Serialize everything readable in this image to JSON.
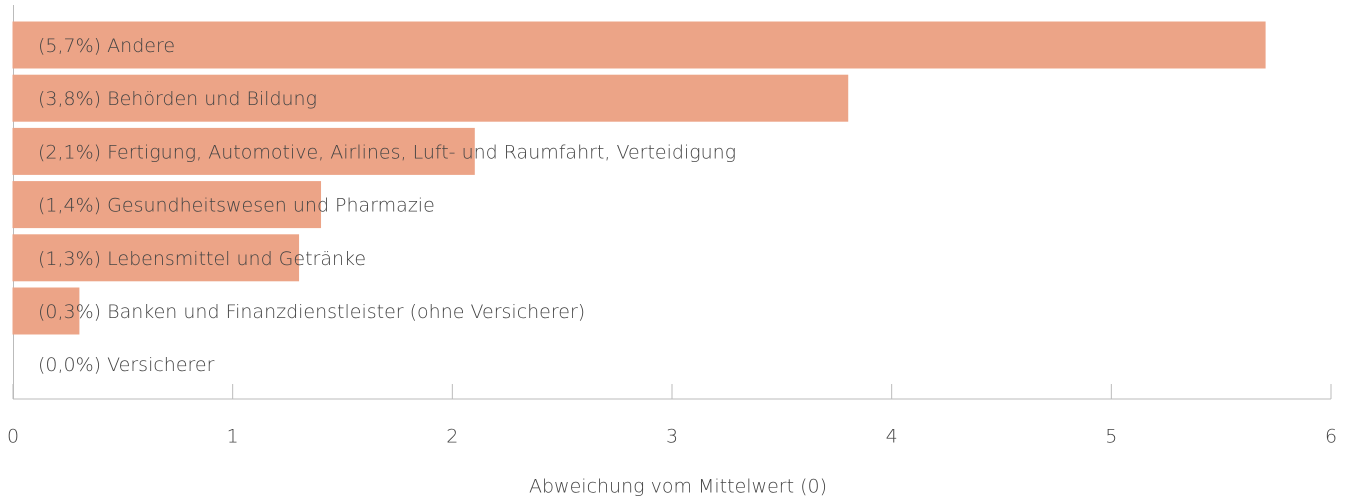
{
  "chart_data": {
    "type": "bar",
    "orientation": "horizontal",
    "categories": [
      "Andere",
      "Behörden und Bildung",
      "Fertigung, Automotive, Airlines, Luft- und Raumfahrt, Verteidigung",
      "Gesundheitswesen und Pharmazie",
      "Lebensmittel und Getränke",
      "Banken und Finanzdienstleister (ohne Versicherer)",
      "Versicherer"
    ],
    "values": [
      5.7,
      3.8,
      2.1,
      1.4,
      1.3,
      0.3,
      0.0
    ],
    "value_labels": [
      "(5,7%)",
      "(3,8%)",
      "(2,1%)",
      "(1,4%)",
      "(1,3%)",
      "(0,3%)",
      "(0,0%)"
    ],
    "color": "#eca487",
    "xlabel": "Abweichung vom Mittelwert (0)",
    "xlim": [
      0,
      6
    ],
    "xticks": [
      0,
      1,
      2,
      3,
      4,
      5,
      6
    ],
    "grid": false
  }
}
